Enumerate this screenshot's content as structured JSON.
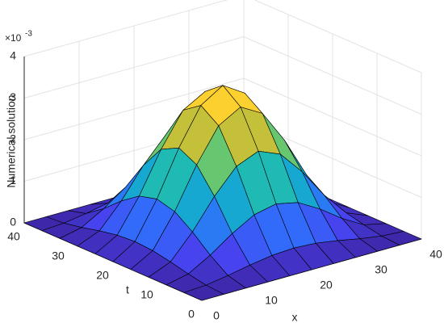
{
  "chart_data": {
    "type": "surface",
    "xlabel": "x",
    "ylabel": "t",
    "zlabel": "Numerical solution",
    "z_multiplier": {
      "base": "×10",
      "exponent": "-3"
    },
    "x": [
      0,
      4,
      8,
      12,
      16,
      20,
      24,
      28,
      32,
      36,
      40
    ],
    "y": [
      0,
      4,
      8,
      12,
      16,
      20,
      24,
      28,
      32,
      36,
      40
    ],
    "z": [
      [
        0,
        0,
        0,
        0,
        0,
        0,
        0,
        0,
        0,
        0,
        0
      ],
      [
        0,
        0.032,
        0.115,
        0.219,
        0.302,
        0.334,
        0.302,
        0.219,
        0.115,
        0.032,
        0
      ],
      [
        0,
        0.115,
        0.418,
        0.791,
        1.094,
        1.209,
        1.094,
        0.791,
        0.418,
        0.115,
        0
      ],
      [
        0,
        0.219,
        0.792,
        1.499,
        2.072,
        2.291,
        2.072,
        1.499,
        0.792,
        0.219,
        0
      ],
      [
        0,
        0.302,
        1.094,
        2.072,
        2.864,
        3.166,
        2.864,
        2.072,
        1.094,
        0.302,
        0
      ],
      [
        0,
        0.334,
        1.209,
        2.291,
        3.166,
        3.5,
        3.166,
        2.291,
        1.209,
        0.334,
        0
      ],
      [
        0,
        0.302,
        1.094,
        2.072,
        2.864,
        3.166,
        2.864,
        2.072,
        1.094,
        0.302,
        0
      ],
      [
        0,
        0.219,
        0.792,
        1.499,
        2.072,
        2.291,
        2.072,
        1.499,
        0.792,
        0.219,
        0
      ],
      [
        0,
        0.115,
        0.418,
        0.791,
        1.094,
        1.209,
        1.094,
        0.791,
        0.418,
        0.115,
        0
      ],
      [
        0,
        0.032,
        0.115,
        0.219,
        0.302,
        0.334,
        0.302,
        0.219,
        0.115,
        0.032,
        0
      ],
      [
        0,
        0,
        0,
        0,
        0,
        0,
        0,
        0,
        0,
        0,
        0
      ]
    ],
    "xlim": [
      0,
      40
    ],
    "ylim": [
      0,
      40
    ],
    "zlim": [
      0,
      4
    ],
    "xticks": [
      0,
      10,
      20,
      30,
      40
    ],
    "yticks": [
      0,
      10,
      20,
      30,
      40
    ],
    "zticks": [
      0,
      1,
      2,
      3,
      4
    ],
    "grid": true,
    "colormap": [
      "#3e26a8",
      "#4743f0",
      "#2f6ffb",
      "#1a9ae0",
      "#13b6c2",
      "#3ec48f",
      "#95ca4f",
      "#dcbb2e",
      "#fdc834",
      "#f9fb0e"
    ]
  }
}
